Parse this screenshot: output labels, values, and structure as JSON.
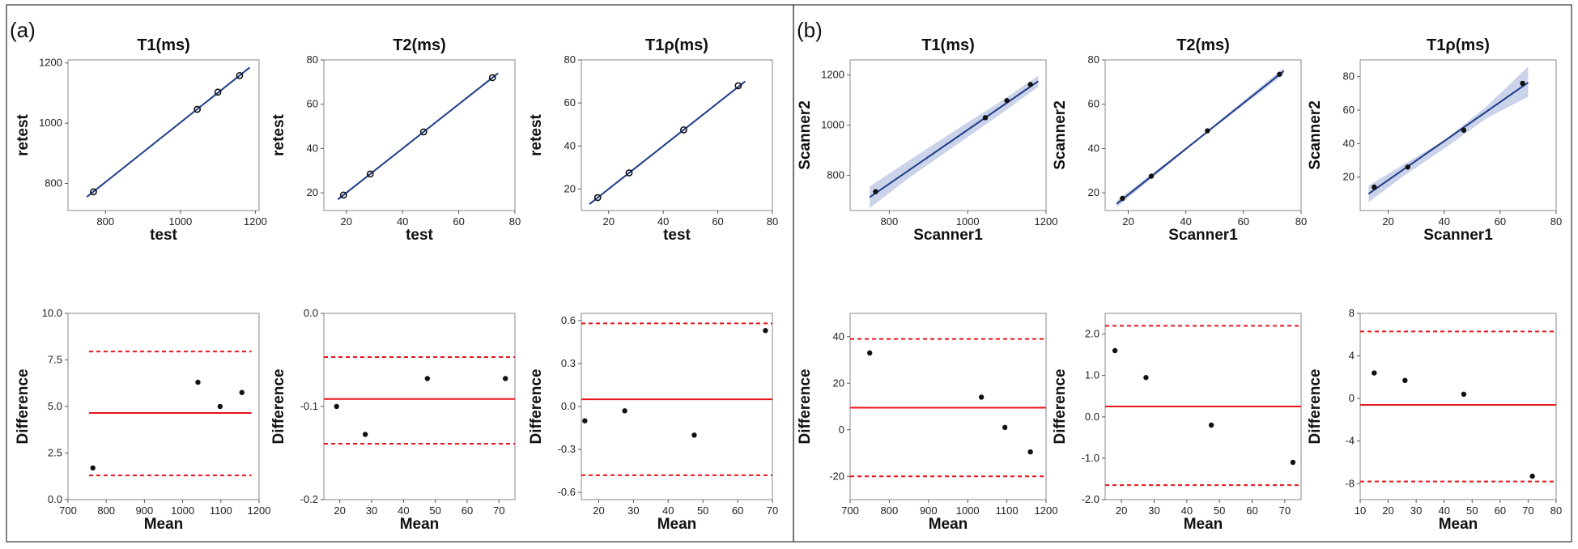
{
  "colors": {
    "fit_line": "#1f3c88",
    "ci_band": "#b8c4e2",
    "mean_line": "#e8141b",
    "loa_line": "#e8141b",
    "points": "#111111",
    "frame": "#888888"
  },
  "panels": [
    {
      "label": "(a)"
    },
    {
      "label": "(b)"
    }
  ],
  "chart_data": [
    {
      "id": "a1",
      "type": "scatter",
      "title": "T1(ms)",
      "xlabel": "test",
      "ylabel": "retest",
      "xlim": [
        700,
        1210
      ],
      "ylim": [
        710,
        1210
      ],
      "xticks": [
        800,
        1000,
        1200
      ],
      "yticks": [
        800,
        1000,
        1200
      ],
      "xtick_labels": [
        "800",
        "1000",
        "1200"
      ],
      "ytick_labels": [
        "800",
        "1000",
        "1200"
      ],
      "x": [
        768,
        1045,
        1100,
        1158
      ],
      "y": [
        772,
        1046,
        1103,
        1158
      ],
      "fit": {
        "x": [
          750,
          1185
        ],
        "y": [
          755,
          1185
        ]
      }
    },
    {
      "id": "a2",
      "type": "scatter",
      "title": "T2(ms)",
      "xlabel": "test",
      "ylabel": "retest",
      "xlim": [
        12,
        80
      ],
      "ylim": [
        12,
        80
      ],
      "xticks": [
        20,
        40,
        60,
        80
      ],
      "yticks": [
        20,
        40,
        60,
        80
      ],
      "xtick_labels": [
        "20",
        "40",
        "60",
        "80"
      ],
      "ytick_labels": [
        "20",
        "40",
        "60",
        "80"
      ],
      "x": [
        19,
        28.5,
        47.5,
        72
      ],
      "y": [
        19,
        28.5,
        47.5,
        72
      ],
      "fit": {
        "x": [
          17,
          74
        ],
        "y": [
          17,
          74
        ]
      }
    },
    {
      "id": "a3",
      "type": "scatter",
      "title": "T1ρ(ms)",
      "xlabel": "test",
      "ylabel": "retest",
      "xlim": [
        10,
        80
      ],
      "ylim": [
        10,
        80
      ],
      "xticks": [
        20,
        40,
        60,
        80
      ],
      "yticks": [
        20,
        40,
        60,
        80
      ],
      "xtick_labels": [
        "20",
        "40",
        "60",
        "80"
      ],
      "ytick_labels": [
        "20",
        "40",
        "60",
        "80"
      ],
      "x": [
        16,
        27.5,
        47.5,
        67.5
      ],
      "y": [
        16,
        27.5,
        47.5,
        68
      ],
      "fit": {
        "x": [
          13,
          70
        ],
        "y": [
          13,
          70
        ]
      }
    },
    {
      "id": "b1",
      "type": "scatter",
      "title": "T1(ms)",
      "xlabel": "Scanner1",
      "ylabel": "Scanner2",
      "xlim": [
        700,
        1200
      ],
      "ylim": [
        660,
        1260
      ],
      "xticks": [
        800,
        1000,
        1200
      ],
      "yticks": [
        800,
        1000,
        1200
      ],
      "xtick_labels": [
        "800",
        "1000",
        "1200"
      ],
      "ytick_labels": [
        "800",
        "1000",
        "1200"
      ],
      "x": [
        765,
        1045,
        1100,
        1160
      ],
      "y": [
        735,
        1030,
        1098,
        1162
      ],
      "fit": {
        "x": [
          750,
          1180
        ],
        "y": [
          713,
          1175
        ]
      },
      "ci_band": {
        "x": [
          750,
          850,
          965,
          1080,
          1180
        ],
        "lower": [
          670,
          790,
          915,
          1040,
          1153
        ],
        "upper": [
          756,
          859,
          976,
          1090,
          1197
        ]
      }
    },
    {
      "id": "b2",
      "type": "scatter",
      "title": "T2(ms)",
      "xlabel": "Scanner1",
      "ylabel": "Scanner2",
      "xlim": [
        12,
        80
      ],
      "ylim": [
        12,
        80
      ],
      "xticks": [
        20,
        40,
        60,
        80
      ],
      "yticks": [
        20,
        40,
        60,
        80
      ],
      "xtick_labels": [
        "20",
        "40",
        "60",
        "80"
      ],
      "ytick_labels": [
        "20",
        "40",
        "60",
        "80"
      ],
      "x": [
        18,
        28,
        47.5,
        72.5
      ],
      "y": [
        17.5,
        27.5,
        48,
        73.5
      ],
      "fit": {
        "x": [
          16,
          74
        ],
        "y": [
          15,
          75
        ]
      },
      "ci_band": {
        "x": [
          16,
          44,
          74
        ],
        "lower": [
          13.5,
          43.6,
          73.5
        ],
        "upper": [
          16.5,
          44.4,
          76.5
        ]
      }
    },
    {
      "id": "b3",
      "type": "scatter",
      "title": "T1ρ(ms)",
      "xlabel": "Scanner1",
      "ylabel": "Scanner2",
      "xlim": [
        10,
        80
      ],
      "ylim": [
        0,
        90
      ],
      "xticks": [
        20,
        40,
        60,
        80
      ],
      "yticks": [
        20,
        40,
        60,
        80
      ],
      "xtick_labels": [
        "20",
        "40",
        "60",
        "80"
      ],
      "ytick_labels": [
        "20",
        "40",
        "60",
        "80"
      ],
      "x": [
        15,
        27,
        47,
        68
      ],
      "y": [
        14,
        26,
        48,
        76
      ],
      "fit": {
        "x": [
          13,
          70
        ],
        "y": [
          10,
          76.5
        ]
      },
      "ci_band": {
        "x": [
          13,
          25,
          40,
          55,
          70
        ],
        "lower": [
          5,
          20,
          37,
          55,
          68
        ],
        "upper": [
          15,
          27,
          42,
          62,
          86
        ]
      }
    },
    {
      "id": "a4",
      "type": "scatter",
      "title": "",
      "xlabel": "Mean",
      "ylabel": "Difference",
      "xlim": [
        700,
        1200
      ],
      "ylim": [
        0,
        10
      ],
      "xticks": [
        700,
        800,
        900,
        1000,
        1100,
        1200
      ],
      "yticks": [
        0,
        2.5,
        5,
        7.5,
        10
      ],
      "xtick_labels": [
        "700",
        "800",
        "900",
        "1000",
        "1100",
        "1200"
      ],
      "ytick_labels": [
        "0.0",
        "2.5",
        "5.0",
        "7.5",
        "10.0"
      ],
      "x": [
        765,
        1040,
        1098,
        1155
      ],
      "y": [
        1.7,
        6.3,
        5.0,
        5.75
      ],
      "mean_diff": 4.65,
      "loa": [
        1.3,
        7.95
      ],
      "line_x": [
        755,
        1180
      ]
    },
    {
      "id": "a5",
      "type": "scatter",
      "title": "",
      "xlabel": "Mean",
      "ylabel": "Difference",
      "xlim": [
        15,
        75
      ],
      "ylim": [
        -0.2,
        0
      ],
      "xticks": [
        20,
        30,
        40,
        50,
        60,
        70
      ],
      "yticks": [
        -0.2,
        -0.1,
        0
      ],
      "xtick_labels": [
        "20",
        "30",
        "40",
        "50",
        "60",
        "70"
      ],
      "ytick_labels": [
        "-0.2",
        "-0.1",
        "0.0"
      ],
      "x": [
        19,
        28,
        47.5,
        72
      ],
      "y": [
        -0.1,
        -0.13,
        -0.07,
        -0.07
      ],
      "mean_diff": -0.092,
      "loa": [
        -0.14,
        -0.047
      ],
      "line_x": [
        15,
        75
      ]
    },
    {
      "id": "a6",
      "type": "scatter",
      "title": "",
      "xlabel": "Mean",
      "ylabel": "Difference",
      "xlim": [
        15,
        70
      ],
      "ylim": [
        -0.65,
        0.65
      ],
      "xticks": [
        20,
        30,
        40,
        50,
        60,
        70
      ],
      "yticks": [
        -0.6,
        -0.3,
        0,
        0.3,
        0.6
      ],
      "xtick_labels": [
        "20",
        "30",
        "40",
        "50",
        "60",
        "70"
      ],
      "ytick_labels": [
        "-0.6",
        "-0.3",
        "0.0",
        "0.3",
        "0.6"
      ],
      "x": [
        16,
        27.5,
        47.5,
        68
      ],
      "y": [
        -0.1,
        -0.03,
        -0.2,
        0.53
      ],
      "mean_diff": 0.05,
      "loa": [
        -0.48,
        0.58
      ],
      "line_x": [
        15,
        70
      ]
    },
    {
      "id": "b4",
      "type": "scatter",
      "title": "",
      "xlabel": "Mean",
      "ylabel": "Difference",
      "xlim": [
        700,
        1200
      ],
      "ylim": [
        -30,
        50
      ],
      "xticks": [
        700,
        800,
        900,
        1000,
        1100,
        1200
      ],
      "yticks": [
        -20,
        0,
        20,
        40
      ],
      "xtick_labels": [
        "700",
        "800",
        "900",
        "1000",
        "1100",
        "1200"
      ],
      "ytick_labels": [
        "-20",
        "0",
        "20",
        "40"
      ],
      "x": [
        750,
        1035,
        1095,
        1160
      ],
      "y": [
        33,
        14,
        1,
        -9.5
      ],
      "mean_diff": 9.5,
      "loa": [
        -20,
        39
      ],
      "line_x": [
        700,
        1200
      ]
    },
    {
      "id": "b5",
      "type": "scatter",
      "title": "",
      "xlabel": "Mean",
      "ylabel": "Difference",
      "xlim": [
        15,
        75
      ],
      "ylim": [
        -2,
        2.5
      ],
      "xticks": [
        20,
        30,
        40,
        50,
        60,
        70
      ],
      "yticks": [
        -2,
        -1,
        0,
        1,
        2
      ],
      "xtick_labels": [
        "20",
        "30",
        "40",
        "50",
        "60",
        "70"
      ],
      "ytick_labels": [
        "-2.0",
        "-1.0",
        "0.0",
        "1.0",
        "2.0"
      ],
      "x": [
        18,
        27.5,
        47.5,
        72.5
      ],
      "y": [
        1.6,
        0.95,
        -0.2,
        -1.1
      ],
      "mean_diff": 0.25,
      "loa": [
        -1.65,
        2.2
      ],
      "line_x": [
        15,
        75
      ]
    },
    {
      "id": "b6",
      "type": "scatter",
      "title": "",
      "xlabel": "Mean",
      "ylabel": "Difference",
      "xlim": [
        10,
        80
      ],
      "ylim": [
        -9.5,
        8
      ],
      "xticks": [
        10,
        20,
        30,
        40,
        50,
        60,
        70,
        80
      ],
      "yticks": [
        -8,
        -4,
        0,
        4,
        8
      ],
      "xtick_labels": [
        "10",
        "20",
        "30",
        "40",
        "50",
        "60",
        "70",
        "80"
      ],
      "ytick_labels": [
        "-8",
        "-4",
        "0",
        "4",
        "8"
      ],
      "x": [
        15,
        26,
        47,
        71.5
      ],
      "y": [
        2.4,
        1.7,
        0.4,
        -7.3
      ],
      "mean_diff": -0.6,
      "loa": [
        -7.8,
        6.3
      ],
      "line_x": [
        10,
        80
      ]
    }
  ]
}
